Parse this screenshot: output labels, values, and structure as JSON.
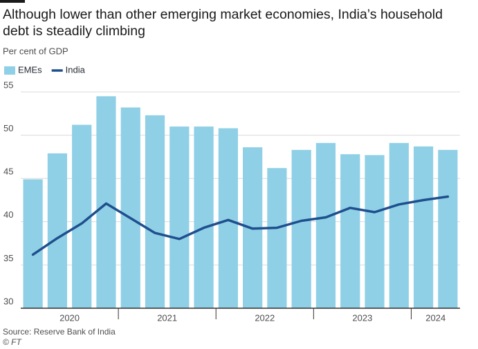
{
  "chart_data": {
    "type": "bar_line",
    "title": [
      "Although lower than other emerging market economies, India’s household",
      "debt is steadily climbing"
    ],
    "subtitle": "Per cent of GDP",
    "source": "Source: Reserve Bank of India",
    "credit": "© FT",
    "categories": [
      "2020",
      "2020",
      "2020",
      "2020",
      "2021",
      "2021",
      "2021",
      "2021",
      "2022",
      "2022",
      "2022",
      "2022",
      "2023",
      "2023",
      "2023",
      "2023",
      "2024",
      "2024"
    ],
    "series": [
      {
        "name": "EMEs",
        "kind": "bar",
        "color": "#8fd0e6",
        "values": [
          44.9,
          47.9,
          51.2,
          54.5,
          53.2,
          52.3,
          51.0,
          51.0,
          50.8,
          48.6,
          46.2,
          48.3,
          49.1,
          47.8,
          47.7,
          49.1,
          48.7,
          48.3
        ]
      },
      {
        "name": "India",
        "kind": "line",
        "color": "#1f4f8e",
        "values": [
          36.2,
          38.1,
          39.8,
          42.1,
          40.4,
          38.7,
          38.0,
          39.3,
          40.2,
          39.2,
          39.3,
          40.1,
          40.5,
          41.6,
          41.1,
          42.0,
          42.5,
          42.9
        ]
      }
    ],
    "ylim": [
      30,
      55
    ],
    "yticks": [
      30,
      35,
      40,
      45,
      50,
      55
    ],
    "grid": true
  }
}
